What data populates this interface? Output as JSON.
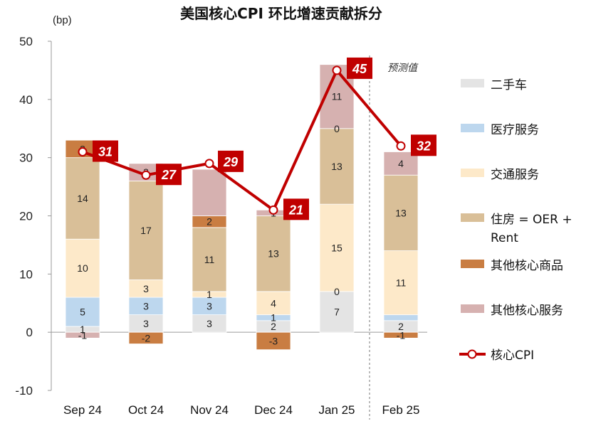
{
  "chart_data": {
    "type": "bar",
    "stacked": true,
    "title": "美国核心CPI 环比增速贡献拆分",
    "unit_label": "(bp)",
    "forecast_label": "预测值",
    "ylim": [
      -10,
      50
    ],
    "yticks": [
      "50",
      "40",
      "30",
      "20",
      "10",
      "0",
      "-10"
    ],
    "categories": [
      "Sep 24",
      "Oct 24",
      "Nov 24",
      "Dec 24",
      "Jan 25",
      "Feb 25"
    ],
    "series": [
      {
        "name": "二手车",
        "color": "#e4e4e4",
        "values": [
          1,
          3,
          3,
          2,
          7,
          2
        ]
      },
      {
        "name": "医疗服务",
        "color": "#bdd7ee",
        "values": [
          5,
          3,
          3,
          1,
          0,
          1
        ]
      },
      {
        "name": "交通服务",
        "color": "#fde9c9",
        "values": [
          10,
          3,
          1,
          4,
          15,
          11
        ]
      },
      {
        "name": "住房 = OER + Rent",
        "color": "#d9bf98",
        "values": [
          14,
          17,
          11,
          13,
          13,
          13
        ]
      },
      {
        "name": "其他核心商品",
        "color": "#c97d42",
        "values": [
          3,
          -2,
          2,
          -3,
          0,
          -1
        ]
      },
      {
        "name": "其他核心服务",
        "color": "#d6b1b0",
        "values": [
          -1,
          3,
          8,
          1,
          11,
          4
        ]
      }
    ],
    "labels": [
      [
        "1",
        "3",
        "3",
        "2",
        "7",
        "2"
      ],
      [
        "5",
        "3",
        "3",
        "1",
        "0",
        ""
      ],
      [
        "10",
        "3",
        "1",
        "4",
        "15",
        "11"
      ],
      [
        "14",
        "17",
        "11",
        "13",
        "13",
        "13"
      ],
      [
        "3",
        "-2",
        "2",
        "-3",
        "0",
        "-1"
      ],
      [
        "-1",
        "3",
        "",
        "1",
        "11",
        "4"
      ]
    ],
    "line": {
      "name": "核心CPI",
      "color": "#c00000",
      "values": [
        31,
        27,
        29,
        21,
        45,
        32
      ],
      "labels": [
        "31",
        "27",
        "29",
        "21",
        "45",
        "32"
      ]
    },
    "legend_position": "right"
  }
}
